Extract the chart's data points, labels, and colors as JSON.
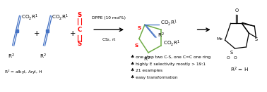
{
  "bg_color": "#ffffff",
  "fig_width": 3.78,
  "fig_height": 1.31,
  "dpi": 100,
  "text_color": "#000000",
  "red_color": "#ff0000",
  "blue_color": "#4472c4",
  "green_color": "#70ad47",
  "bullet": "♣",
  "highlights": [
    "one step two C-S, one C=C one ring",
    "highly E selectivity mostly > 19:1",
    "21 examples",
    "easy transformation"
  ],
  "r2_footnote": "R$^2$ = alkyl, Aryl, H",
  "r2_footnote2": "R$^2$ = H",
  "conditions_top": "DPPE (10 mol%)",
  "conditions_bot": "CS$_2$, rt"
}
